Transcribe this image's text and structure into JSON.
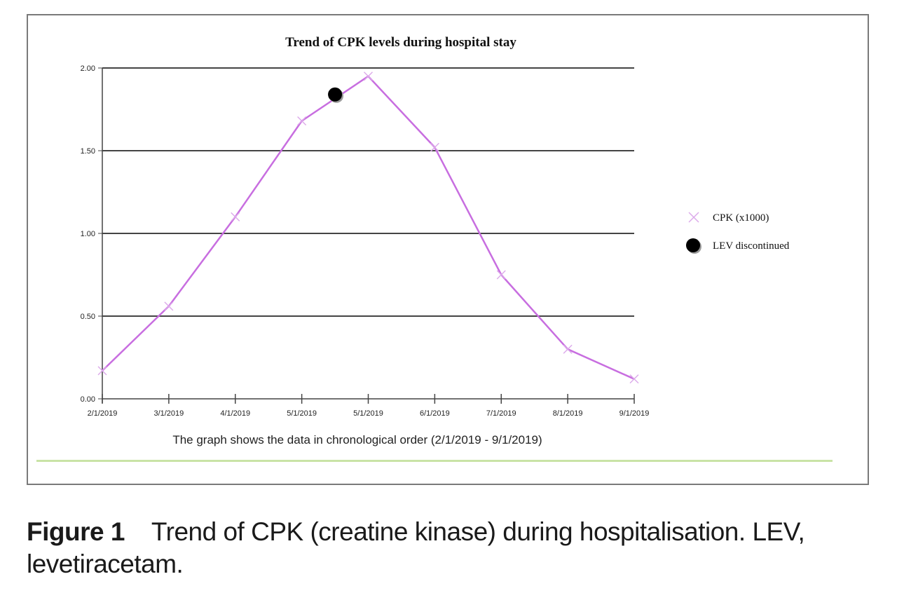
{
  "chart_data": {
    "type": "line",
    "title": "Trend of CPK levels during hospital stay",
    "subtitle": "The graph shows the data in chronological order (2/1/2019 - 9/1/2019)",
    "x_tick_labels": [
      "2/1/2019",
      "3/1/2019",
      "4/1/2019",
      "5/1/2019",
      "5/1/2019",
      "6/1/2019",
      "7/1/2019",
      "8/1/2019",
      "9/1/2019"
    ],
    "y_tick_labels": [
      "0.00",
      "0.50",
      "1.00",
      "1.50",
      "2.00"
    ],
    "ylim": [
      0,
      2.0
    ],
    "grid": true,
    "legend_position": "right",
    "series": [
      {
        "name": "CPK (x1000)",
        "color": "#c86ee0",
        "marker": "x",
        "values": [
          0.17,
          0.56,
          1.1,
          1.68,
          1.95,
          1.52,
          0.75,
          0.3,
          0.12
        ]
      }
    ],
    "annotation": {
      "name": "LEV discontinued",
      "marker": "filled-circle",
      "color": "#000000",
      "x_index": 3.5,
      "value": 1.84
    }
  },
  "caption": {
    "label": "Figure 1",
    "text": "Trend of CPK (creatine kinase) during hospitalisation. LEV, levetiracetam."
  }
}
